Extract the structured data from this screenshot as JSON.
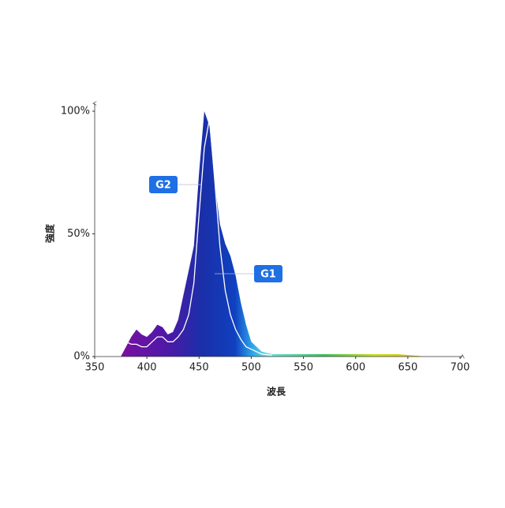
{
  "chart_data": {
    "type": "area",
    "x": [
      375,
      380,
      385,
      390,
      395,
      400,
      405,
      410,
      415,
      420,
      425,
      430,
      435,
      440,
      445,
      450,
      455,
      460,
      465,
      470,
      475,
      480,
      485,
      490,
      495,
      500,
      510,
      520,
      550,
      600,
      640,
      660,
      665
    ],
    "series": [
      {
        "name": "G2",
        "color": "spectrum",
        "values": [
          0,
          4,
          8,
          11,
          9,
          8,
          10,
          13,
          12,
          9,
          10,
          15,
          25,
          35,
          45,
          75,
          100,
          94,
          71,
          54,
          46,
          41,
          33,
          22,
          13,
          6,
          2,
          1,
          1,
          1,
          1,
          0.3,
          0
        ]
      },
      {
        "name": "G1",
        "color": "#ffffff",
        "values": [
          null,
          6,
          5,
          5,
          4,
          4,
          6,
          8,
          8,
          6,
          6,
          8,
          11,
          17,
          30,
          58,
          85,
          97,
          72,
          45,
          27,
          17,
          11,
          7,
          4,
          3,
          1,
          0.5,
          null,
          null,
          null,
          null,
          null
        ]
      }
    ],
    "xlabel": "波長",
    "ylabel": "強度",
    "xlim": [
      350,
      700
    ],
    "xticks": [
      350,
      400,
      450,
      500,
      550,
      600,
      650,
      700
    ],
    "ylim": [
      0,
      100
    ],
    "yticks": [
      {
        "value": 0,
        "label": "0%"
      },
      {
        "value": 50,
        "label": "50%"
      },
      {
        "value": 100,
        "label": "100%"
      }
    ]
  }
}
